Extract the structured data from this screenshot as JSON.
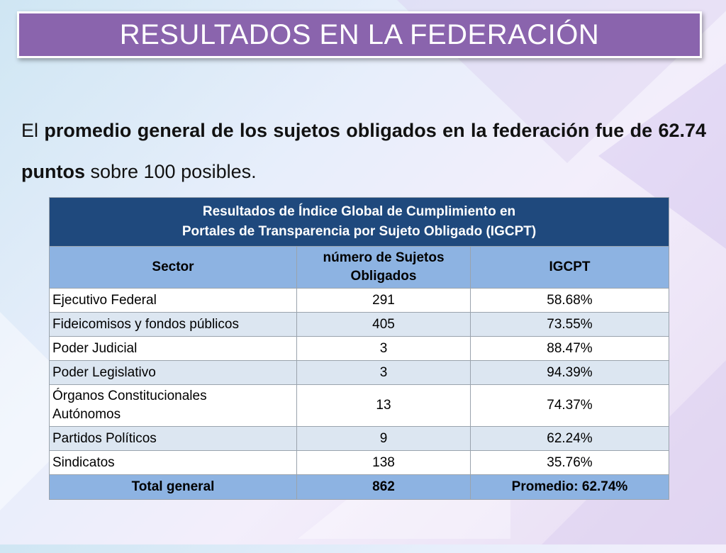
{
  "title": "RESULTADOS EN LA FEDERACIÓN",
  "intro": {
    "t1": "El ",
    "b1": "promedio general de los sujetos obligados en la federación fue de 62.74 puntos",
    "t2": " sobre 100 posibles."
  },
  "table": {
    "caption_line1": "Resultados de Índice Global de Cumplimiento en",
    "caption_line2": "Portales de Transparencia por Sujeto Obligado (IGCPT)",
    "headers": {
      "sector": "Sector",
      "count_line1": "número de Sujetos",
      "count_line2": "Obligados",
      "igcpt": "IGCPT"
    },
    "rows": [
      {
        "sector": "Ejecutivo Federal",
        "count": "291",
        "igcpt": "58.68%"
      },
      {
        "sector": "Fideicomisos y fondos públicos",
        "count": "405",
        "igcpt": "73.55%"
      },
      {
        "sector": "Poder Judicial",
        "count": "3",
        "igcpt": "88.47%"
      },
      {
        "sector": "Poder Legislativo",
        "count": "3",
        "igcpt": "94.39%"
      },
      {
        "sector_line1": "Órganos Constitucionales",
        "sector_line2": "Autónomos",
        "count": "13",
        "igcpt": "74.37%"
      },
      {
        "sector": "Partidos Políticos",
        "count": "9",
        "igcpt": "62.24%"
      },
      {
        "sector": "Sindicatos",
        "count": "138",
        "igcpt": "35.76%"
      }
    ],
    "total": {
      "label": "Total general",
      "count": "862",
      "igcpt": "Promedio: 62.74%"
    }
  }
}
